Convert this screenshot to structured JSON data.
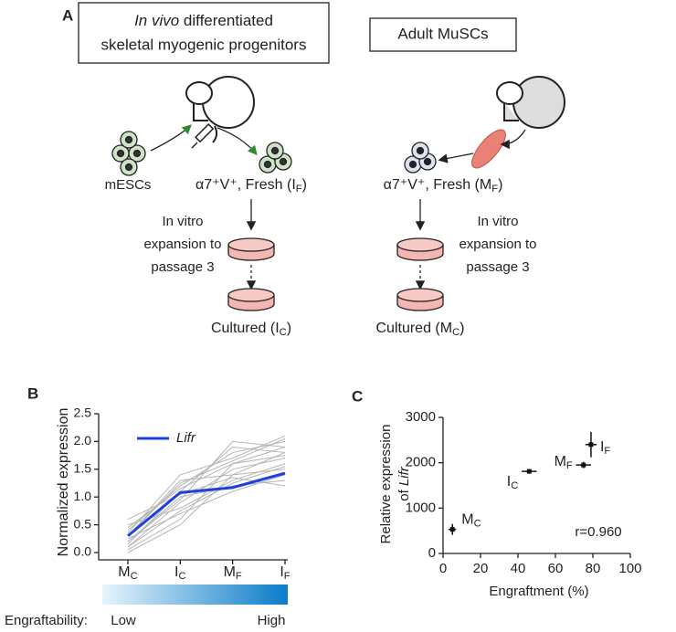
{
  "panels": {
    "a": "A",
    "b": "B",
    "c": "C"
  },
  "diagram": {
    "left_box": {
      "italic": "In vivo",
      "rest": " differentiated",
      "line2": "skeletal myogenic progenitors"
    },
    "right_box": "Adult MuSCs",
    "mescs": "mESCs",
    "fresh_i": {
      "main": "α7⁺V⁺, Fresh (I",
      "sub": "F",
      "end": ")",
      "color": "#e41a1c"
    },
    "fresh_m": {
      "main": "α7⁺V⁺, Fresh (M",
      "sub": "F",
      "end": ")",
      "color": "#2ca02c"
    },
    "expansion_left": [
      "In vitro",
      "expansion to",
      "passage 3"
    ],
    "expansion_right": [
      "In vitro",
      "expansion to",
      "passage 3"
    ],
    "cultured_i": {
      "main": "Cultured (I",
      "sub": "C",
      "end": ")",
      "color": "#f5c400"
    },
    "cultured_m": {
      "main": "Cultured (M",
      "sub": "C",
      "end": ")",
      "color": "#1f6fb5"
    }
  },
  "engraftability": {
    "label": "Engraftability:",
    "low": "Low",
    "high": "High"
  },
  "chart_data": [
    {
      "type": "line",
      "ylabel": "Normalized expression",
      "categories": [
        "M",
        "I",
        "M",
        "I"
      ],
      "category_subscripts": [
        "C",
        "C",
        "F",
        "F"
      ],
      "series": [
        {
          "name": "Lifr",
          "color": "#1f3fe0",
          "values": [
            0.3,
            1.08,
            1.17,
            1.43
          ]
        }
      ],
      "background_lines": {
        "color": "#b5b5b5",
        "values": [
          [
            0.1,
            0.9,
            1.5,
            1.7
          ],
          [
            0.2,
            1.0,
            1.2,
            1.3
          ],
          [
            0.4,
            1.2,
            1.8,
            2.0
          ],
          [
            0.05,
            0.6,
            1.6,
            1.9
          ],
          [
            0.3,
            1.3,
            1.4,
            1.5
          ],
          [
            0.5,
            0.8,
            1.3,
            1.6
          ],
          [
            0.15,
            1.1,
            1.9,
            1.8
          ],
          [
            0.25,
            0.7,
            1.1,
            1.4
          ],
          [
            0.35,
            1.4,
            1.7,
            2.1
          ],
          [
            0.0,
            0.5,
            1.4,
            1.8
          ],
          [
            0.45,
            1.15,
            1.6,
            1.75
          ],
          [
            0.2,
            0.95,
            2.0,
            1.9
          ],
          [
            0.1,
            0.75,
            1.25,
            1.55
          ],
          [
            0.6,
            1.05,
            1.35,
            1.2
          ],
          [
            0.3,
            1.25,
            1.65,
            2.05
          ]
        ]
      },
      "ylim": [
        0,
        2.5
      ],
      "yticks": [
        {
          "value": 0,
          "label": "0.0"
        },
        {
          "value": 0.5,
          "label": "0.5"
        },
        {
          "value": 1,
          "label": "1.0"
        },
        {
          "value": 1.5,
          "label": "1.5"
        },
        {
          "value": 2,
          "label": "2.0"
        },
        {
          "value": 2.5,
          "label": "2.5"
        }
      ]
    },
    {
      "type": "scatter",
      "xlabel": "Engraftment (%)",
      "ylabel": {
        "line1": "Relative expression",
        "line2_prefix": "of ",
        "line2_italic": "Lifr"
      },
      "x": [
        5,
        46,
        75,
        79
      ],
      "values": [
        530,
        1810,
        1950,
        2400
      ],
      "x_errors": [
        2,
        4,
        4,
        3
      ],
      "errors": [
        120,
        50,
        70,
        280
      ],
      "point_labels": [
        {
          "main": "M",
          "sub": "C",
          "color": "#1f6fb5"
        },
        {
          "main": "I",
          "sub": "C",
          "color": "#f5c400"
        },
        {
          "main": "M",
          "sub": "F",
          "color": "#2ca02c"
        },
        {
          "main": "I",
          "sub": "F",
          "color": "#e41a1c"
        }
      ],
      "annotation": "r=0.960",
      "xlim": [
        0,
        100
      ],
      "xticks": [
        0,
        20,
        40,
        60,
        80,
        100
      ],
      "ylim": [
        0,
        3000
      ],
      "yticks": [
        0,
        1000,
        2000,
        3000
      ]
    }
  ]
}
